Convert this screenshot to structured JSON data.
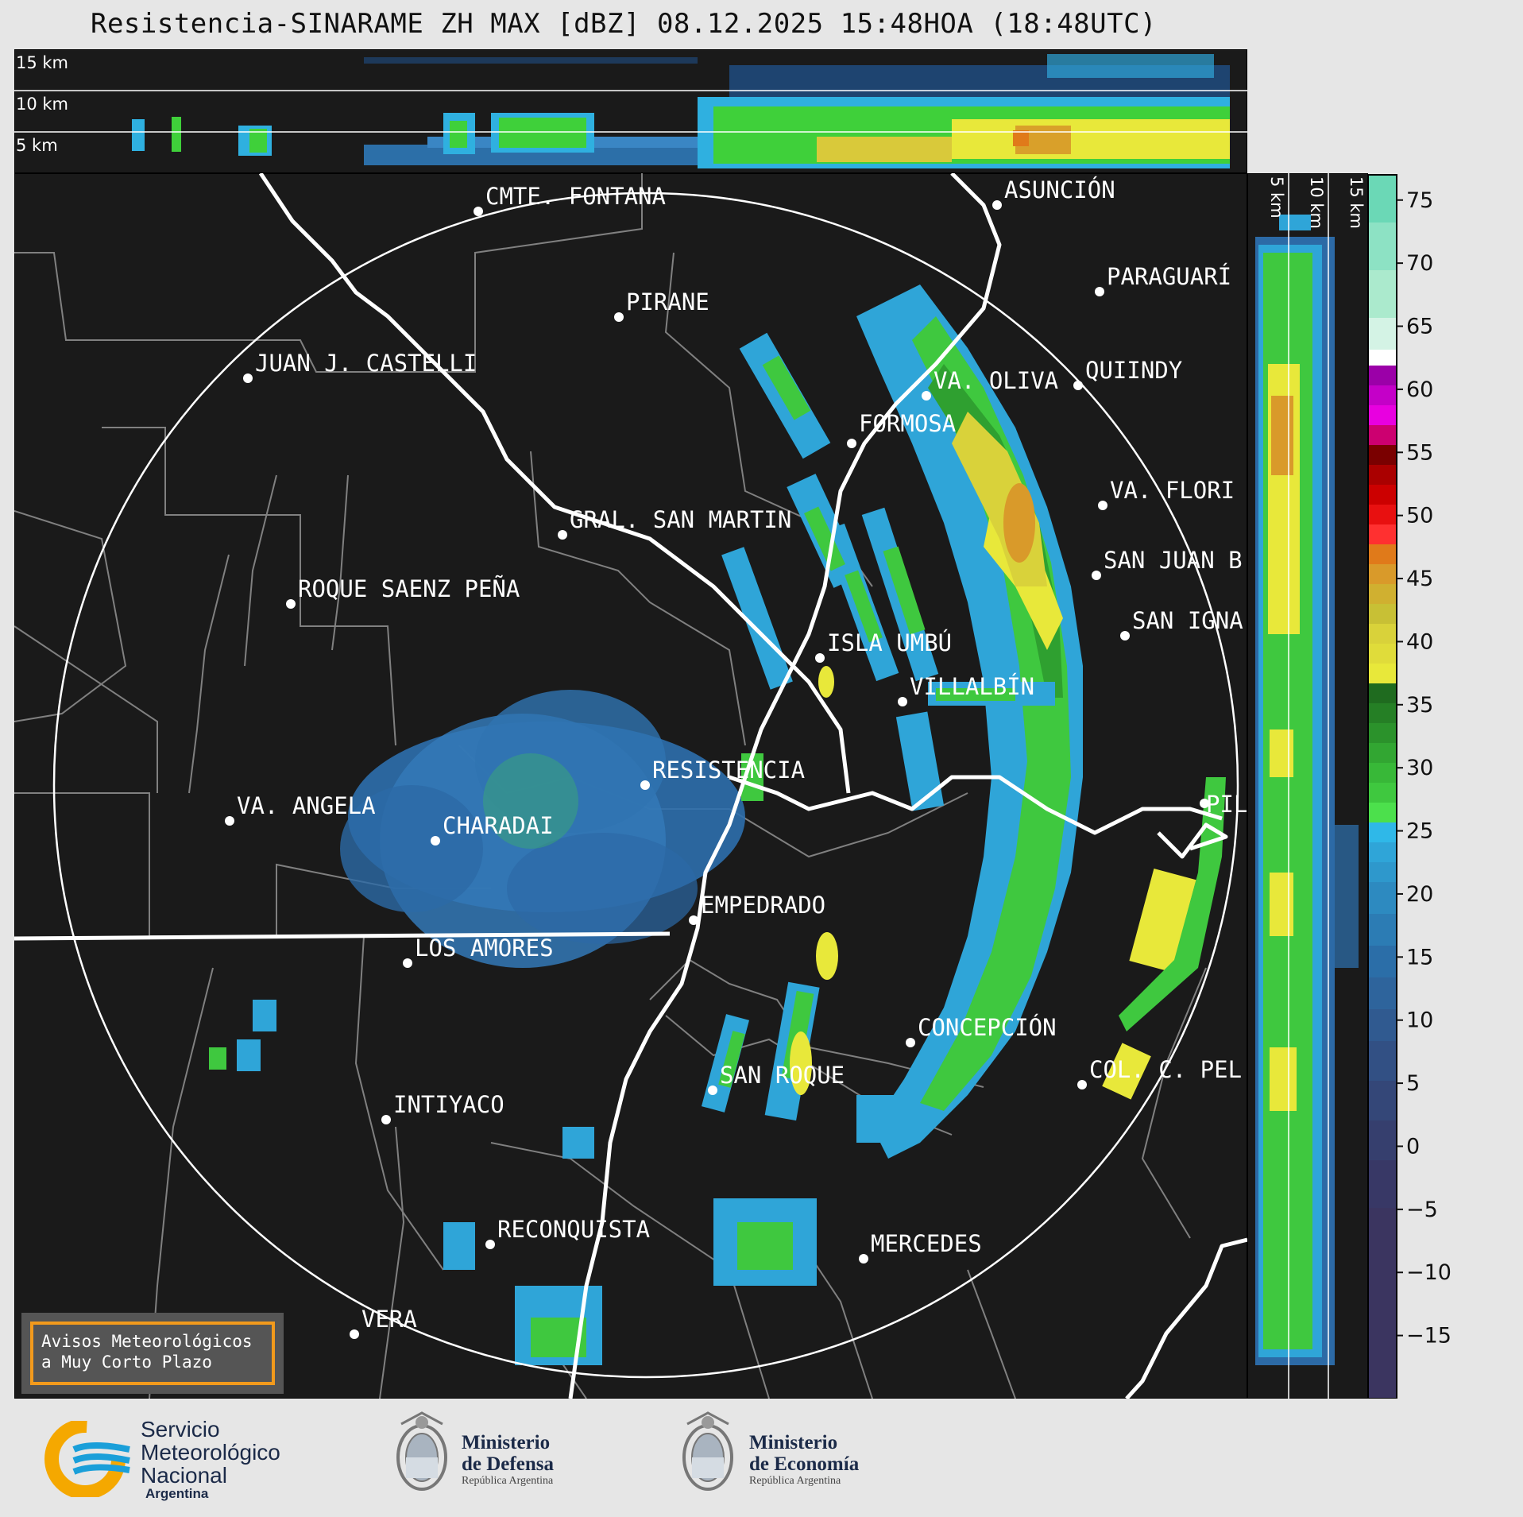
{
  "title": "Resistencia-SINARAME ZH MAX [dBZ] 08.12.2025 15:48HOA (18:48UTC)",
  "top_panel": {
    "altitudes": [
      "15 km",
      "10 km",
      "5 km"
    ]
  },
  "side_panel": {
    "altitudes": [
      "5 km",
      "10 km",
      "15 km"
    ]
  },
  "colorbar": {
    "ticks": [
      "75",
      "70",
      "65",
      "60",
      "55",
      "50",
      "45",
      "40",
      "35",
      "30",
      "25",
      "20",
      "15",
      "10",
      "5",
      "0",
      "−5",
      "−10",
      "−15"
    ],
    "range": [
      -20,
      77
    ]
  },
  "cities": [
    {
      "name": "CMTE. FONTANA"
    },
    {
      "name": "ASUNCIÓN"
    },
    {
      "name": "PARAGUARÍ"
    },
    {
      "name": "PIRANE"
    },
    {
      "name": "JUAN J. CASTELLI"
    },
    {
      "name": "VA. OLIVA"
    },
    {
      "name": "QUIINDY"
    },
    {
      "name": "FORMOSA"
    },
    {
      "name": "VA. FLORI"
    },
    {
      "name": "GRAL. SAN MARTIN"
    },
    {
      "name": "SAN JUAN B"
    },
    {
      "name": "ROQUE SAENZ PEÑA"
    },
    {
      "name": "SAN IGNA"
    },
    {
      "name": "ISLA UMBÚ"
    },
    {
      "name": "VILLALBÍN"
    },
    {
      "name": "RESISTENCIA"
    },
    {
      "name": "VA. ANGELA"
    },
    {
      "name": "CHARADAI"
    },
    {
      "name": "PIL"
    },
    {
      "name": "EMPEDRADO"
    },
    {
      "name": "LOS AMORES"
    },
    {
      "name": "CONCEPCIÓN"
    },
    {
      "name": "SAN ROQUE"
    },
    {
      "name": "COL. C. PEL"
    },
    {
      "name": "INTIYACO"
    },
    {
      "name": "RECONQUISTA"
    },
    {
      "name": "MERCEDES"
    },
    {
      "name": "VERA"
    }
  ],
  "warning": {
    "line1": "Avisos Meteorológicos",
    "line2": "a Muy Corto Plazo"
  },
  "logos": {
    "smn": {
      "line1": "Servicio",
      "line2": "Meteorológico",
      "line3": "Nacional",
      "line4": "Argentina",
      "accent": "#f5a800",
      "blue": "#1a9fd9"
    },
    "defensa": {
      "line1": "Ministerio",
      "line2": "de Defensa",
      "sub": "República Argentina"
    },
    "economia": {
      "line1": "Ministerio",
      "line2": "de Economía",
      "sub": "República Argentina"
    }
  },
  "colors": {
    "background": "#1a1a1a",
    "page": "#e6e6e6",
    "ring": "#ffffff",
    "river": "#ffffff",
    "borders": "#808080"
  }
}
